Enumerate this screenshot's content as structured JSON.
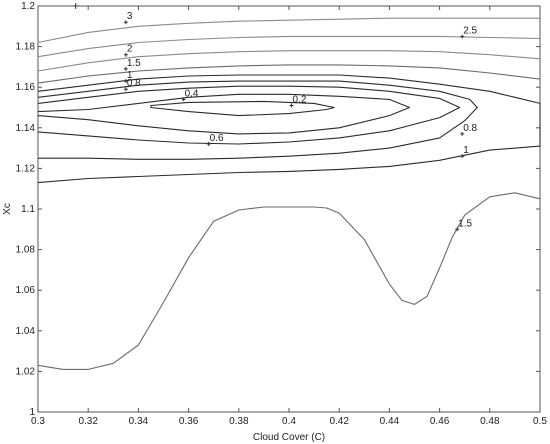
{
  "chart_data": {
    "type": "contour",
    "xlabel": "Cloud Cover (C)",
    "ylabel": "Χc",
    "xlim": [
      0.3,
      0.5
    ],
    "ylim": [
      1.0,
      1.2
    ],
    "x_ticks": [
      0.3,
      0.32,
      0.34,
      0.36,
      0.38,
      0.4,
      0.42,
      0.44,
      0.46,
      0.48,
      0.5
    ],
    "y_ticks": [
      1.0,
      1.02,
      1.04,
      1.06,
      1.08,
      1.1,
      1.12,
      1.14,
      1.16,
      1.18,
      1.2
    ],
    "x_tick_labels": [
      "0.3",
      "0.32",
      "0.34",
      "0.36",
      "0.38",
      "0.4",
      "0.42",
      "0.44",
      "0.46",
      "0.48",
      "0.5"
    ],
    "y_tick_labels": [
      "1",
      "1.02",
      "1.04",
      "1.06",
      "1.08",
      "1.1",
      "1.12",
      "1.14",
      "1.16",
      "1.18",
      "1.2"
    ],
    "grid": false,
    "line_color": "#333333",
    "levels": [
      {
        "level": 0.2,
        "label": "0.2",
        "closed": true,
        "label_at": [
          0.401,
          1.151
        ],
        "points": [
          [
            0.345,
            1.15
          ],
          [
            0.36,
            1.148
          ],
          [
            0.38,
            1.146
          ],
          [
            0.4,
            1.147
          ],
          [
            0.415,
            1.149
          ],
          [
            0.418,
            1.15
          ],
          [
            0.41,
            1.152
          ],
          [
            0.39,
            1.153
          ],
          [
            0.36,
            1.1525
          ],
          [
            0.345,
            1.151
          ]
        ]
      },
      {
        "level": 0.4,
        "label": "0.4",
        "label_at": [
          0.358,
          1.154
        ],
        "points": [
          [
            0.3,
            1.148
          ],
          [
            0.32,
            1.149
          ],
          [
            0.34,
            1.152
          ],
          [
            0.36,
            1.155
          ],
          [
            0.38,
            1.1565
          ],
          [
            0.4,
            1.1565
          ],
          [
            0.42,
            1.1555
          ],
          [
            0.44,
            1.154
          ],
          [
            0.448,
            1.15
          ],
          [
            0.44,
            1.146
          ],
          [
            0.42,
            1.14
          ],
          [
            0.4,
            1.1375
          ],
          [
            0.38,
            1.137
          ],
          [
            0.36,
            1.1385
          ],
          [
            0.34,
            1.141
          ],
          [
            0.32,
            1.144
          ],
          [
            0.3,
            1.146
          ]
        ]
      },
      {
        "level": 0.6,
        "label": "0.6",
        "label_at": [
          0.368,
          1.132
        ],
        "points": [
          [
            0.3,
            1.152
          ],
          [
            0.32,
            1.155
          ],
          [
            0.34,
            1.158
          ],
          [
            0.36,
            1.1595
          ],
          [
            0.38,
            1.1605
          ],
          [
            0.4,
            1.1605
          ],
          [
            0.42,
            1.16
          ],
          [
            0.44,
            1.158
          ],
          [
            0.46,
            1.1545
          ],
          [
            0.468,
            1.15
          ],
          [
            0.46,
            1.145
          ],
          [
            0.44,
            1.1385
          ],
          [
            0.42,
            1.135
          ],
          [
            0.4,
            1.133
          ],
          [
            0.38,
            1.132
          ],
          [
            0.36,
            1.1325
          ],
          [
            0.34,
            1.134
          ],
          [
            0.32,
            1.136
          ],
          [
            0.3,
            1.138
          ]
        ]
      },
      {
        "level": 0.8,
        "label": "0.8",
        "label_at": [
          0.335,
          1.159
        ],
        "label2": "0.8",
        "label2_at": [
          0.469,
          1.137
        ],
        "points": [
          [
            0.3,
            1.155
          ],
          [
            0.32,
            1.158
          ],
          [
            0.34,
            1.161
          ],
          [
            0.36,
            1.1625
          ],
          [
            0.38,
            1.163
          ],
          [
            0.4,
            1.163
          ],
          [
            0.42,
            1.163
          ],
          [
            0.44,
            1.161
          ],
          [
            0.46,
            1.158
          ],
          [
            0.472,
            1.154
          ],
          [
            0.475,
            1.15
          ],
          [
            0.47,
            1.1435
          ],
          [
            0.46,
            1.135
          ],
          [
            0.44,
            1.13
          ],
          [
            0.42,
            1.1275
          ],
          [
            0.4,
            1.126
          ],
          [
            0.38,
            1.125
          ],
          [
            0.36,
            1.1245
          ],
          [
            0.34,
            1.1245
          ],
          [
            0.32,
            1.125
          ],
          [
            0.3,
            1.125
          ]
        ]
      },
      {
        "level": 1,
        "label": "1",
        "label_at": [
          0.335,
          1.163
        ],
        "label2": "1",
        "label2_at": [
          0.469,
          1.126
        ],
        "points": [
          [
            0.3,
            1.158
          ],
          [
            0.32,
            1.161
          ],
          [
            0.34,
            1.164
          ],
          [
            0.36,
            1.1655
          ],
          [
            0.38,
            1.166
          ],
          [
            0.4,
            1.166
          ],
          [
            0.42,
            1.166
          ],
          [
            0.44,
            1.1645
          ],
          [
            0.46,
            1.1615
          ],
          [
            0.48,
            1.158
          ],
          [
            0.49,
            1.155
          ],
          [
            0.5,
            1.152
          ],
          [
            0.5,
            1.131
          ],
          [
            0.48,
            1.129
          ],
          [
            0.46,
            1.124
          ],
          [
            0.44,
            1.121
          ],
          [
            0.42,
            1.1195
          ],
          [
            0.4,
            1.1185
          ],
          [
            0.38,
            1.118
          ],
          [
            0.36,
            1.117
          ],
          [
            0.34,
            1.116
          ],
          [
            0.32,
            1.115
          ],
          [
            0.3,
            1.113
          ]
        ]
      },
      {
        "level": 1.5,
        "label": "1.5",
        "label_at": [
          0.335,
          1.169
        ],
        "label2": "1.5",
        "label2_at": [
          0.467,
          1.09
        ],
        "points1": [
          [
            0.3,
            1.162
          ],
          [
            0.32,
            1.1655
          ],
          [
            0.34,
            1.168
          ],
          [
            0.36,
            1.1695
          ],
          [
            0.38,
            1.1705
          ],
          [
            0.4,
            1.171
          ],
          [
            0.42,
            1.171
          ],
          [
            0.44,
            1.1705
          ],
          [
            0.46,
            1.1695
          ],
          [
            0.48,
            1.167
          ],
          [
            0.5,
            1.164
          ]
        ],
        "points2": [
          [
            0.3,
            1.023
          ],
          [
            0.31,
            1.021
          ],
          [
            0.32,
            1.021
          ],
          [
            0.33,
            1.024
          ],
          [
            0.34,
            1.033
          ],
          [
            0.35,
            1.054
          ],
          [
            0.36,
            1.076
          ],
          [
            0.37,
            1.094
          ],
          [
            0.38,
            1.0995
          ],
          [
            0.39,
            1.101
          ],
          [
            0.4,
            1.101
          ],
          [
            0.41,
            1.101
          ],
          [
            0.415,
            1.1005
          ],
          [
            0.42,
            1.098
          ],
          [
            0.43,
            1.085
          ],
          [
            0.44,
            1.063
          ],
          [
            0.445,
            1.055
          ],
          [
            0.45,
            1.053
          ],
          [
            0.455,
            1.057
          ],
          [
            0.46,
            1.071
          ],
          [
            0.465,
            1.086
          ],
          [
            0.47,
            1.097
          ],
          [
            0.48,
            1.106
          ],
          [
            0.49,
            1.108
          ],
          [
            0.5,
            1.105
          ]
        ]
      },
      {
        "level": 2,
        "label": "2",
        "label_at": [
          0.335,
          1.176
        ],
        "points": [
          [
            0.3,
            1.168
          ],
          [
            0.32,
            1.172
          ],
          [
            0.34,
            1.175
          ],
          [
            0.36,
            1.1765
          ],
          [
            0.38,
            1.1775
          ],
          [
            0.4,
            1.178
          ],
          [
            0.42,
            1.178
          ],
          [
            0.44,
            1.178
          ],
          [
            0.46,
            1.1775
          ],
          [
            0.48,
            1.176
          ],
          [
            0.5,
            1.174
          ]
        ]
      },
      {
        "level": 2.5,
        "label": "2.5",
        "label_at": [
          0.469,
          1.185
        ],
        "points": [
          [
            0.3,
            1.175
          ],
          [
            0.32,
            1.179
          ],
          [
            0.34,
            1.182
          ],
          [
            0.36,
            1.1835
          ],
          [
            0.38,
            1.1845
          ],
          [
            0.4,
            1.185
          ],
          [
            0.42,
            1.185
          ],
          [
            0.44,
            1.185
          ],
          [
            0.46,
            1.185
          ],
          [
            0.48,
            1.1845
          ],
          [
            0.5,
            1.184
          ]
        ]
      },
      {
        "level": 3,
        "label": "3",
        "label_at": [
          0.335,
          1.192
        ],
        "points": [
          [
            0.3,
            1.182
          ],
          [
            0.32,
            1.187
          ],
          [
            0.34,
            1.19
          ],
          [
            0.36,
            1.1915
          ],
          [
            0.38,
            1.1925
          ],
          [
            0.4,
            1.193
          ],
          [
            0.42,
            1.1935
          ],
          [
            0.44,
            1.194
          ],
          [
            0.46,
            1.194
          ],
          [
            0.48,
            1.194
          ],
          [
            0.5,
            1.194
          ]
        ]
      }
    ],
    "extra_marker": [
      0.315,
      1.2
    ]
  }
}
